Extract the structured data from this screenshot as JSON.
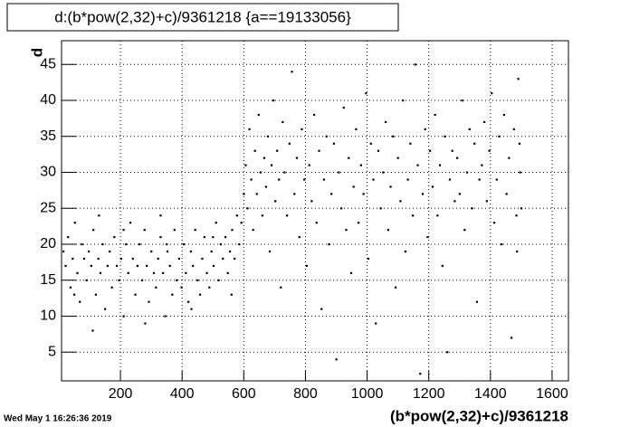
{
  "chart_data": {
    "type": "scatter",
    "title": "d:(b*pow(2,32)+c)/9361218 {a==19133056}",
    "x_label": "(b*pow(2,32)+c)/9361218",
    "y_label": "d",
    "timestamp": "Wed May  1 16:26:36 2019",
    "color": "#000000",
    "grid": true,
    "xlim": [
      9,
      1653
    ],
    "ylim": [
      1,
      48.3
    ],
    "xticks": [
      200,
      400,
      600,
      800,
      1000,
      1200,
      1400,
      1600
    ],
    "yticks": [
      5,
      10,
      15,
      20,
      25,
      30,
      35,
      40,
      45
    ],
    "x": [
      15,
      22,
      30,
      38,
      45,
      52,
      60,
      68,
      75,
      82,
      90,
      97,
      105,
      112,
      120,
      128,
      135,
      142,
      150,
      158,
      165,
      172,
      180,
      188,
      195,
      202,
      210,
      218,
      225,
      232,
      240,
      248,
      255,
      262,
      270,
      278,
      285,
      292,
      300,
      308,
      315,
      322,
      330,
      338,
      345,
      352,
      360,
      368,
      375,
      382,
      390,
      398,
      405,
      412,
      420,
      428,
      435,
      442,
      450,
      458,
      465,
      472,
      480,
      488,
      495,
      502,
      510,
      518,
      525,
      532,
      540,
      548,
      555,
      562,
      570,
      578,
      585,
      592,
      600,
      606,
      612,
      618,
      624,
      630,
      636,
      642,
      648,
      654,
      660,
      666,
      672,
      678,
      684,
      690,
      696,
      702,
      708,
      714,
      720,
      726,
      732,
      740,
      748,
      756,
      764,
      772,
      780,
      788,
      796,
      804,
      812,
      820,
      828,
      836,
      844,
      852,
      860,
      868,
      876,
      884,
      892,
      900,
      908,
      916,
      924,
      932,
      940,
      948,
      956,
      964,
      972,
      980,
      988,
      996,
      1004,
      1012,
      1020,
      1028,
      1036,
      1044,
      1052,
      1060,
      1068,
      1076,
      1084,
      1092,
      1100,
      1108,
      1116,
      1124,
      1132,
      1140,
      1148,
      1156,
      1164,
      1172,
      1180,
      1188,
      1196,
      1204,
      1212,
      1220,
      1228,
      1236,
      1244,
      1252,
      1260,
      1268,
      1276,
      1284,
      1292,
      1300,
      1308,
      1316,
      1324,
      1332,
      1340,
      1348,
      1356,
      1364,
      1372,
      1380,
      1388,
      1396,
      1404,
      1412,
      1420,
      1428,
      1436,
      1444,
      1452,
      1460,
      1468,
      1476,
      1484,
      1490,
      1496,
      1500,
      1494,
      1486,
      50,
      130,
      210,
      280,
      350,
      430,
      500,
      560,
      110,
      330
    ],
    "y": [
      19,
      17,
      21,
      14,
      18,
      23,
      16,
      12,
      20,
      18,
      15,
      19,
      17,
      22,
      13,
      18,
      16,
      20,
      11,
      17,
      19,
      14,
      21,
      17,
      15,
      18,
      10,
      20,
      16,
      23,
      18,
      13,
      17,
      20,
      15,
      22,
      17,
      12,
      19,
      16,
      14,
      18,
      21,
      16,
      10,
      19,
      17,
      13,
      22,
      15,
      18,
      14,
      20,
      16,
      12,
      19,
      17,
      22,
      15,
      13,
      18,
      21,
      16,
      14,
      19,
      17,
      23,
      15,
      20,
      18,
      21,
      16,
      19,
      22,
      18,
      24,
      20,
      23,
      27,
      31,
      25,
      36,
      29,
      22,
      33,
      27,
      38,
      30,
      24,
      32,
      28,
      35,
      19,
      31,
      40,
      26,
      33,
      29,
      14,
      37,
      30,
      24,
      34,
      44,
      27,
      32,
      21,
      36,
      29,
      17,
      31,
      26,
      38,
      23,
      33,
      11,
      29,
      35,
      20,
      27,
      34,
      4,
      30,
      25,
      39,
      22,
      32,
      16,
      28,
      36,
      23,
      31,
      27,
      41,
      18,
      34,
      29,
      9,
      33,
      25,
      30,
      37,
      22,
      28,
      35,
      14,
      32,
      26,
      40,
      19,
      29,
      34,
      24,
      45,
      31,
      2,
      27,
      36,
      21,
      33,
      28,
      38,
      24,
      31,
      17,
      35,
      5,
      29,
      33,
      26,
      32,
      27,
      40,
      22,
      30,
      36,
      25,
      34,
      12,
      29,
      31,
      37,
      26,
      33,
      41,
      23,
      29,
      35,
      20,
      38,
      27,
      32,
      7,
      36,
      24,
      43,
      30,
      25,
      34,
      19,
      13,
      24,
      22,
      9,
      20,
      11,
      21,
      13,
      8,
      24
    ]
  }
}
